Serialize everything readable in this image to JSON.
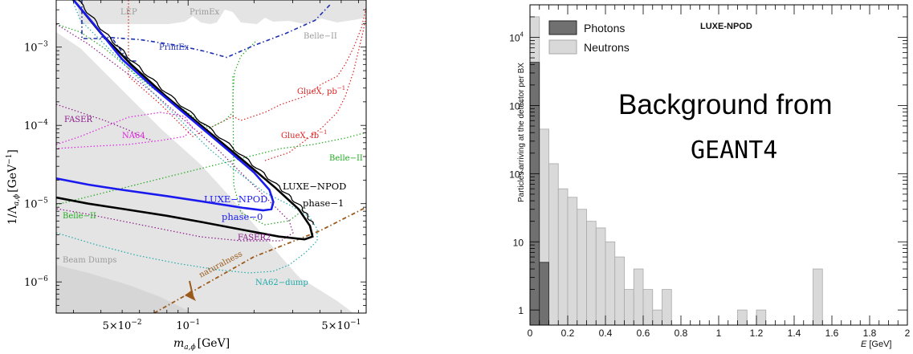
{
  "chart_data": [
    {
      "type": "line",
      "xlabel_main": "m",
      "xlabel_sub": "a,ϕ",
      "xlabel_unit": "[GeV]",
      "ylabel_main": "1/Λ",
      "ylabel_sub": "a,ϕ",
      "ylabel_unit": "[GeV",
      "ylabel_exp": "−1",
      "ylabel_close": "]",
      "x_scale": "log",
      "y_scale": "log",
      "xlim": [
        0.025,
        0.65
      ],
      "ylim": [
        4e-07,
        0.004
      ],
      "x_ticks": [
        {
          "value": 0.05,
          "mant": "5×10",
          "exp": "−2"
        },
        {
          "value": 0.1,
          "mant": "10",
          "exp": "−1"
        },
        {
          "value": 0.5,
          "mant": "5×10",
          "exp": "−1"
        }
      ],
      "y_ticks": [
        {
          "value": 1e-06,
          "mant": "10",
          "exp": "−6"
        },
        {
          "value": 1e-05,
          "mant": "10",
          "exp": "−5"
        },
        {
          "value": 0.0001,
          "mant": "10",
          "exp": "−4"
        },
        {
          "value": 0.001,
          "mant": "10",
          "exp": "−3"
        }
      ],
      "region_labels": [
        {
          "text": "LEP",
          "color": "#9a9a9a"
        },
        {
          "text": "PrimEx",
          "color": "#9a9a9a"
        },
        {
          "text": "Belle−II",
          "color": "#9a9a9a"
        },
        {
          "text": "Beam Dumps",
          "color": "#9a9a9a"
        },
        {
          "text": "PrimEx",
          "color": "#1e2fb0"
        },
        {
          "text": "GlueX, pb",
          "sup": "−1",
          "color": "#dd2222"
        },
        {
          "text": "GlueX, fb",
          "sup": "−1",
          "color": "#dd2222"
        },
        {
          "text": "FASER",
          "color": "#8b1a8b"
        },
        {
          "text": "NA64",
          "color": "#dd22dd"
        },
        {
          "text": "Belle−II",
          "color": "#22aa22"
        },
        {
          "text": "Belle−II",
          "color": "#22aa22"
        },
        {
          "text": "LUXE−NPOD",
          "color": "#000000"
        },
        {
          "text": "phase−1",
          "color": "#000000"
        },
        {
          "text": "LUXE−NPOD",
          "color": "#1a1aee"
        },
        {
          "text": "phase−0",
          "color": "#1a1aee"
        },
        {
          "text": "FASER2",
          "color": "#8b1a8b"
        },
        {
          "text": "NA62−dump",
          "color": "#20aaaa"
        },
        {
          "text": "naturalness",
          "color": "#9a5a1a"
        }
      ],
      "series": [
        {
          "name": "LUXE−NPOD phase−0",
          "color": "#1a1aee",
          "points": [
            [
              0.025,
              2.1e-05
            ],
            [
              0.035,
              1.75e-05
            ],
            [
              0.05,
              1.5e-05
            ],
            [
              0.08,
              1.25e-05
            ],
            [
              0.12,
              1.05e-05
            ],
            [
              0.18,
              8.8e-06
            ],
            [
              0.22,
              8.2e-06
            ],
            [
              0.24,
              8.5e-06
            ],
            [
              0.245,
              1.05e-05
            ],
            [
              0.235,
              1.5e-05
            ],
            [
              0.2,
              2.5e-05
            ],
            [
              0.15,
              5e-05
            ],
            [
              0.1,
              0.00013
            ],
            [
              0.07,
              0.0003
            ],
            [
              0.05,
              0.0007
            ],
            [
              0.037,
              0.002
            ],
            [
              0.03,
              0.004
            ]
          ]
        },
        {
          "name": "LUXE−NPOD phase−1",
          "color": "#000000",
          "points": [
            [
              0.025,
              1.2e-05
            ],
            [
              0.035,
              1e-05
            ],
            [
              0.05,
              8.6e-06
            ],
            [
              0.08,
              7e-06
            ],
            [
              0.12,
              5.7e-06
            ],
            [
              0.18,
              4.6e-06
            ],
            [
              0.26,
              3.8e-06
            ],
            [
              0.34,
              3.5e-06
            ],
            [
              0.37,
              3.8e-06
            ],
            [
              0.36,
              5.2e-06
            ],
            [
              0.32,
              8.5e-06
            ],
            [
              0.25,
              1.6e-05
            ],
            [
              0.18,
              3.5e-05
            ],
            [
              0.12,
              9e-05
            ],
            [
              0.08,
              0.00023
            ],
            [
              0.055,
              0.0006
            ],
            [
              0.04,
              0.0015
            ],
            [
              0.03,
              0.004
            ]
          ]
        },
        {
          "name": "PrimEx",
          "color": "#1e2fb0",
          "points": [
            [
              0.04,
              0.00135
            ],
            [
              0.06,
              0.00125
            ],
            [
              0.09,
              0.00105
            ],
            [
              0.12,
              0.00088
            ],
            [
              0.15,
              0.00074
            ],
            [
              0.2,
              0.00105
            ],
            [
              0.28,
              0.0015
            ],
            [
              0.38,
              0.0022
            ],
            [
              0.45,
              0.0036
            ]
          ]
        },
        {
          "name": "naturalness",
          "color": "#9a5a1a",
          "points": [
            [
              0.07,
              4e-07
            ],
            [
              0.2,
              2.1e-06
            ],
            [
              0.4,
              4.5e-06
            ],
            [
              0.65,
              9e-06
            ]
          ]
        }
      ]
    },
    {
      "type": "bar",
      "title": "LUXE-NPOD",
      "annotation_line1": "Background from",
      "annotation_line2": "GEANT4",
      "xlabel_var": "E",
      "xlabel_unit": "[GeV]",
      "ylabel": "Particles arriving at the detector per BX",
      "y_scale": "log",
      "xlim": [
        0,
        2
      ],
      "ylim": [
        0.6,
        30000
      ],
      "bin_width": 0.05,
      "x_ticks": [
        "0",
        "0.2",
        "0.4",
        "0.6",
        "0.8",
        "1",
        "1.2",
        "1.4",
        "1.6",
        "1.8",
        "2"
      ],
      "y_ticks": [
        {
          "value": 1,
          "label": "1"
        },
        {
          "value": 10,
          "label": "10"
        },
        {
          "value": 100,
          "label": "10",
          "exp": "2"
        },
        {
          "value": 1000,
          "label": "10",
          "exp": "3"
        },
        {
          "value": 10000,
          "label": "10",
          "exp": "4"
        }
      ],
      "legend": [
        {
          "label": "Photons",
          "color": "#707070",
          "edge": "#222222"
        },
        {
          "label": "Neutrons",
          "color": "#d9d9d9",
          "edge": "#a8a8a8"
        }
      ],
      "legend_position": "top-left",
      "series": [
        {
          "name": "Neutrons",
          "color": "#d9d9d9",
          "bins": [
            {
              "x0": 0.0,
              "v": 20000
            },
            {
              "x0": 0.05,
              "v": 450
            },
            {
              "x0": 0.1,
              "v": 140
            },
            {
              "x0": 0.15,
              "v": 60
            },
            {
              "x0": 0.2,
              "v": 45
            },
            {
              "x0": 0.25,
              "v": 30
            },
            {
              "x0": 0.3,
              "v": 20
            },
            {
              "x0": 0.35,
              "v": 16
            },
            {
              "x0": 0.4,
              "v": 10
            },
            {
              "x0": 0.45,
              "v": 6
            },
            {
              "x0": 0.5,
              "v": 2
            },
            {
              "x0": 0.55,
              "v": 4
            },
            {
              "x0": 0.6,
              "v": 2
            },
            {
              "x0": 0.65,
              "v": 1
            },
            {
              "x0": 0.7,
              "v": 2
            },
            {
              "x0": 1.1,
              "v": 1
            },
            {
              "x0": 1.2,
              "v": 1
            },
            {
              "x0": 1.5,
              "v": 4
            }
          ]
        },
        {
          "name": "Photons",
          "color": "#707070",
          "bins": [
            {
              "x0": 0.0,
              "v": 4300
            },
            {
              "x0": 0.05,
              "v": 5
            }
          ]
        }
      ]
    }
  ]
}
